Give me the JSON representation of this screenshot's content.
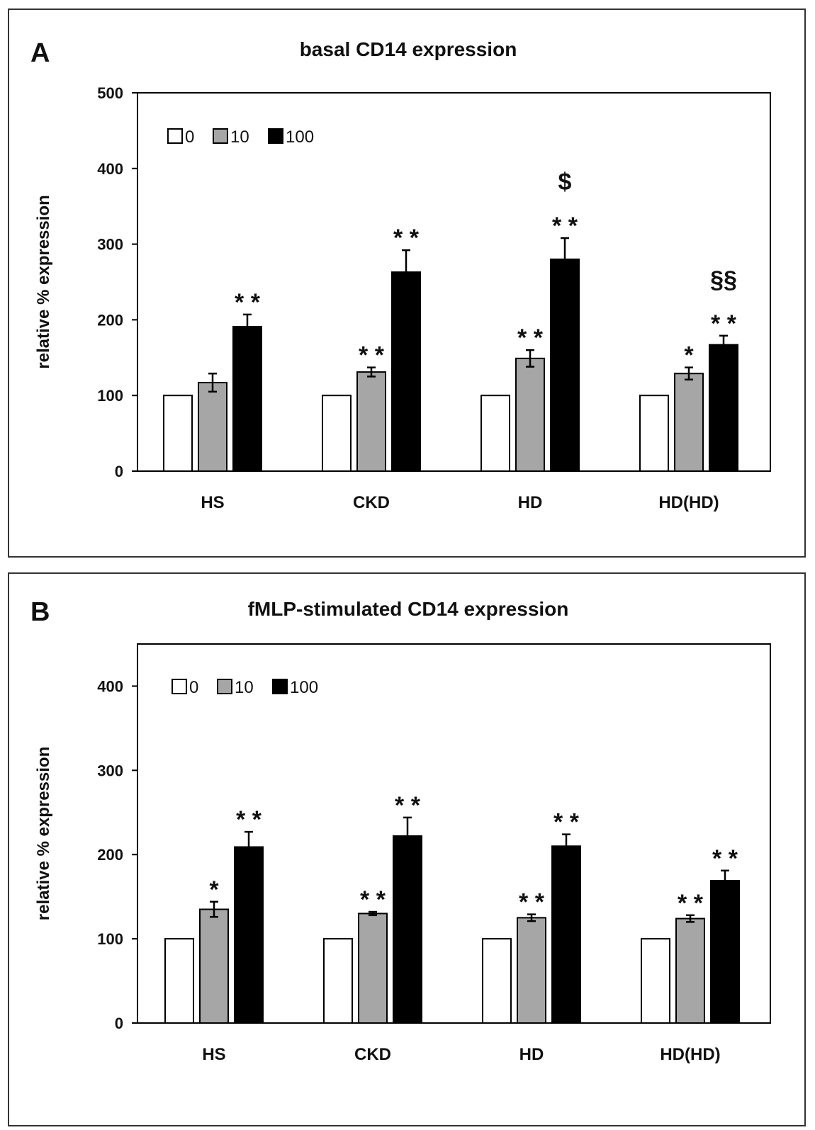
{
  "chart_data": [
    {
      "panel": "A",
      "type": "bar",
      "title": "basal CD14 expression",
      "ylabel": "relative % expression",
      "xlabel": "",
      "ylim": [
        0,
        500
      ],
      "yticks": [
        0,
        100,
        200,
        300,
        400,
        500
      ],
      "categories": [
        "HS",
        "CKD",
        "HD",
        "HD(HD)"
      ],
      "legend": {
        "position": "top-left",
        "entries": [
          "0",
          "10",
          "100"
        ]
      },
      "series": [
        {
          "name": "0",
          "color": "#ffffff",
          "values": [
            100,
            100,
            100,
            100
          ],
          "errors": [
            0,
            0,
            0,
            0
          ]
        },
        {
          "name": "10",
          "color": "#a6a6a6",
          "values": [
            117,
            131,
            149,
            129
          ],
          "errors": [
            12,
            6,
            11,
            8
          ]
        },
        {
          "name": "100",
          "color": "#000000",
          "values": [
            191,
            263,
            280,
            167
          ],
          "errors": [
            16,
            29,
            28,
            12
          ]
        }
      ],
      "annotations": [
        {
          "category": 0,
          "series": 2,
          "lines": [
            "**"
          ]
        },
        {
          "category": 1,
          "series": 1,
          "lines": [
            "**"
          ]
        },
        {
          "category": 1,
          "series": 2,
          "lines": [
            "**"
          ]
        },
        {
          "category": 2,
          "series": 1,
          "lines": [
            "**"
          ]
        },
        {
          "category": 2,
          "series": 2,
          "lines": [
            "$",
            "**"
          ]
        },
        {
          "category": 3,
          "series": 1,
          "lines": [
            "*"
          ]
        },
        {
          "category": 3,
          "series": 2,
          "lines": [
            "§§",
            "**"
          ]
        }
      ]
    },
    {
      "panel": "B",
      "type": "bar",
      "title": "fMLP-stimulated CD14 expression",
      "ylabel": "relative % expression",
      "xlabel": "",
      "ylim": [
        0,
        450
      ],
      "yticks": [
        0,
        100,
        200,
        300,
        400
      ],
      "categories": [
        "HS",
        "CKD",
        "HD",
        "HD(HD)"
      ],
      "legend": {
        "position": "top-left",
        "entries": [
          "0",
          "10",
          "100"
        ]
      },
      "series": [
        {
          "name": "0",
          "color": "#ffffff",
          "values": [
            100,
            100,
            100,
            100
          ],
          "errors": [
            0,
            0,
            0,
            0
          ]
        },
        {
          "name": "10",
          "color": "#a6a6a6",
          "values": [
            135,
            130,
            125,
            124
          ],
          "errors": [
            9,
            2,
            4,
            4
          ]
        },
        {
          "name": "100",
          "color": "#000000",
          "values": [
            209,
            222,
            210,
            169
          ],
          "errors": [
            18,
            22,
            14,
            12
          ]
        }
      ],
      "annotations": [
        {
          "category": 0,
          "series": 1,
          "lines": [
            "*"
          ]
        },
        {
          "category": 0,
          "series": 2,
          "lines": [
            "**"
          ]
        },
        {
          "category": 1,
          "series": 1,
          "lines": [
            "**"
          ]
        },
        {
          "category": 1,
          "series": 2,
          "lines": [
            "**"
          ]
        },
        {
          "category": 2,
          "series": 1,
          "lines": [
            "**"
          ]
        },
        {
          "category": 2,
          "series": 2,
          "lines": [
            "**"
          ]
        },
        {
          "category": 3,
          "series": 1,
          "lines": [
            "**"
          ]
        },
        {
          "category": 3,
          "series": 2,
          "lines": [
            "**"
          ]
        }
      ]
    }
  ]
}
